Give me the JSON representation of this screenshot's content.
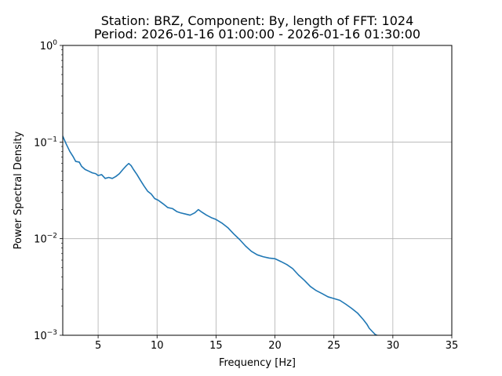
{
  "chart_data": {
    "type": "line",
    "title": "Station: BRZ, Component: By, length of FFT: 1024",
    "subtitle": "Period: 2026-01-16 01:00:00 - 2026-01-16 01:30:00",
    "xlabel": "Frequency [Hz]",
    "ylabel": "Power Spectral Density",
    "xlim": [
      2,
      35
    ],
    "ylim": [
      0.001,
      1
    ],
    "yscale": "log",
    "grid": true,
    "xticks": [
      {
        "value": 5,
        "label": "5"
      },
      {
        "value": 10,
        "label": "10"
      },
      {
        "value": 15,
        "label": "15"
      },
      {
        "value": 20,
        "label": "20"
      },
      {
        "value": 25,
        "label": "25"
      },
      {
        "value": 30,
        "label": "30"
      },
      {
        "value": 35,
        "label": "35"
      }
    ],
    "yticks": [
      {
        "value": 0.001,
        "base": "10",
        "exp": "−3"
      },
      {
        "value": 0.01,
        "base": "10",
        "exp": "−2"
      },
      {
        "value": 0.1,
        "base": "10",
        "exp": "−1"
      },
      {
        "value": 1,
        "base": "10",
        "exp": "0"
      }
    ],
    "series": [
      {
        "color": "#1f77b4",
        "x": [
          2.0,
          2.3,
          2.6,
          2.9,
          3.1,
          3.4,
          3.6,
          3.9,
          4.2,
          4.5,
          4.8,
          5.0,
          5.3,
          5.6,
          5.9,
          6.2,
          6.5,
          6.8,
          7.1,
          7.4,
          7.6,
          7.8,
          8.0,
          8.3,
          8.6,
          8.9,
          9.2,
          9.5,
          9.8,
          10.1,
          10.5,
          10.9,
          11.3,
          11.7,
          12.0,
          12.4,
          12.8,
          13.2,
          13.5,
          13.8,
          14.2,
          14.6,
          15.0,
          15.5,
          16.0,
          16.5,
          17.0,
          17.5,
          18.0,
          18.5,
          19.0,
          19.5,
          20.0,
          20.5,
          21.0,
          21.5,
          22.0,
          22.5,
          23.0,
          23.5,
          24.0,
          24.5,
          25.0,
          25.5,
          26.0,
          26.5,
          27.0,
          27.5,
          27.8,
          28.0,
          28.3,
          28.5,
          28.8
        ],
        "y": [
          0.115,
          0.095,
          0.08,
          0.07,
          0.063,
          0.062,
          0.056,
          0.052,
          0.05,
          0.048,
          0.047,
          0.045,
          0.046,
          0.042,
          0.043,
          0.042,
          0.044,
          0.047,
          0.052,
          0.057,
          0.06,
          0.057,
          0.052,
          0.046,
          0.04,
          0.035,
          0.031,
          0.029,
          0.026,
          0.025,
          0.023,
          0.021,
          0.0205,
          0.019,
          0.0185,
          0.018,
          0.0175,
          0.0185,
          0.02,
          0.0188,
          0.0175,
          0.0165,
          0.0158,
          0.0145,
          0.013,
          0.0112,
          0.0098,
          0.0084,
          0.0074,
          0.0068,
          0.0065,
          0.0063,
          0.0062,
          0.0058,
          0.0054,
          0.0049,
          0.0042,
          0.0037,
          0.0032,
          0.0029,
          0.0027,
          0.0025,
          0.0024,
          0.0023,
          0.0021,
          0.0019,
          0.0017,
          0.00145,
          0.0013,
          0.00118,
          0.00108,
          0.00102,
          0.00098
        ]
      }
    ]
  }
}
